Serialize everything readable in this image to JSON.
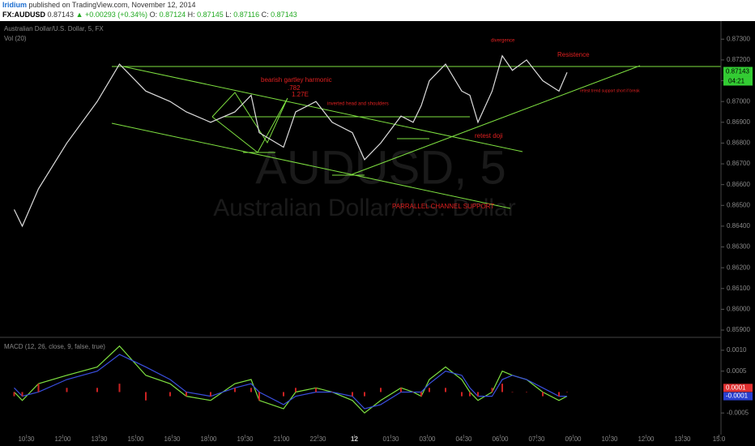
{
  "header": {
    "author": "Iridium",
    "published": "published on TradingView.com, November 12, 2014",
    "symbol": "FX:AUDUSD",
    "last": "0.87143",
    "change": "▲ +0.00293 (+0.34%)",
    "o_label": "O:",
    "o": "0.87124",
    "h_label": "H:",
    "h": "0.87145",
    "l_label": "L:",
    "l": "0.87116",
    "c_label": "C:",
    "c": "0.87143"
  },
  "chart_data": [
    {
      "type": "line",
      "title": "Australian Dollar/U.S. Dollar, 5, FX",
      "subtitle": "Vol (20)",
      "watermark": "AUDUSD, 5",
      "watermark_sub": "Australian Dollar/U.S. Dollar",
      "x": [
        0,
        4,
        12,
        26,
        41,
        52,
        65,
        77,
        85,
        97,
        109,
        117,
        121,
        133,
        139,
        149,
        157,
        167,
        173,
        181,
        191,
        197,
        201,
        205,
        213,
        221,
        225,
        229,
        236,
        241,
        246,
        253,
        261,
        269,
        273
      ],
      "series": [
        {
          "name": "AUDUSD",
          "color": "#dddddd",
          "values": [
            0.8648,
            0.864,
            0.8658,
            0.868,
            0.87,
            0.8718,
            0.8705,
            0.87,
            0.8695,
            0.869,
            0.8695,
            0.8703,
            0.8685,
            0.8678,
            0.8695,
            0.87,
            0.869,
            0.8685,
            0.8672,
            0.868,
            0.8693,
            0.869,
            0.8698,
            0.871,
            0.8718,
            0.8705,
            0.8703,
            0.869,
            0.8705,
            0.8722,
            0.8715,
            0.872,
            0.871,
            0.8705,
            0.8714
          ]
        }
      ],
      "xlim": [
        -7,
        349
      ],
      "xticks": [
        {
          "value": 6,
          "label": "10:30"
        },
        {
          "value": 24,
          "label": "12:00"
        },
        {
          "value": 42,
          "label": "13:30"
        },
        {
          "value": 60,
          "label": "15:00"
        },
        {
          "value": 78,
          "label": "16:30"
        },
        {
          "value": 96,
          "label": "18:00"
        },
        {
          "value": 114,
          "label": "19:30"
        },
        {
          "value": 132,
          "label": "21:00"
        },
        {
          "value": 150,
          "label": "22:30"
        },
        {
          "value": 168,
          "label": "12"
        },
        {
          "value": 186,
          "label": "01:30"
        },
        {
          "value": 204,
          "label": "03:00"
        },
        {
          "value": 222,
          "label": "04:30"
        },
        {
          "value": 240,
          "label": "06:00"
        },
        {
          "value": 258,
          "label": "07:30"
        },
        {
          "value": 276,
          "label": "09:00"
        },
        {
          "value": 294,
          "label": "10:30"
        },
        {
          "value": 312,
          "label": "12:00"
        },
        {
          "value": 330,
          "label": "13:30"
        },
        {
          "value": 348,
          "label": "15:0"
        }
      ],
      "ylim": [
        0.85865,
        0.87387
      ],
      "yticks": [
        {
          "value": 0.873,
          "label": "0.87300"
        },
        {
          "value": 0.872,
          "label": "0.87200"
        },
        {
          "value": 0.871,
          "label": "0.87100"
        },
        {
          "value": 0.87,
          "label": "0.87000"
        },
        {
          "value": 0.869,
          "label": "0.86900"
        },
        {
          "value": 0.868,
          "label": "0.86800"
        },
        {
          "value": 0.867,
          "label": "0.86700"
        },
        {
          "value": 0.866,
          "label": "0.86600"
        },
        {
          "value": 0.865,
          "label": "0.86500"
        },
        {
          "value": 0.864,
          "label": "0.86400"
        },
        {
          "value": 0.863,
          "label": "0.86300"
        },
        {
          "value": 0.862,
          "label": "0.86200"
        },
        {
          "value": 0.861,
          "label": "0.86100"
        },
        {
          "value": 0.86,
          "label": "0.86000"
        },
        {
          "value": 0.859,
          "label": "0.85900"
        }
      ],
      "price_tag": {
        "value": 0.87143,
        "label": "0.87143"
      },
      "countdown": "04:21",
      "annotations": [
        "bearish gartley harmonic",
        ".782",
        "1.27E",
        "inverted head and shoulders",
        "retest doji",
        "PARRALLEL CHANNEL SUPPORT",
        "divergence",
        "Resistence",
        "retest trend support short if break"
      ]
    },
    {
      "type": "macd",
      "title": "MACD (12, 26, close, 9, false, true)",
      "series": [
        {
          "name": "MACD",
          "color": "#7ee040",
          "values": [
            0,
            -0.0002,
            0.0002,
            0.0004,
            0.0006,
            0.0011,
            0.0004,
            0.0002,
            -0.0001,
            -0.0002,
            0.0002,
            0.0003,
            -0.0002,
            -0.0004,
            0,
            0.0001,
            0,
            -0.0002,
            -0.0005,
            -0.0002,
            0.0001,
            0,
            -0.0001,
            0.0003,
            0.0006,
            0.0003,
            0,
            -0.0002,
            0,
            0.0005,
            0.0004,
            0.0003,
            0,
            -0.0002,
            -0.0001
          ]
        },
        {
          "name": "Signal",
          "color": "#3a4fe0",
          "values": [
            0.0001,
            -0.0001,
            0,
            0.0003,
            0.0005,
            0.0009,
            0.0006,
            0.0003,
            0,
            -0.0001,
            0.0001,
            0.0002,
            0,
            -0.0003,
            -0.0001,
            0,
            0,
            -0.0001,
            -0.0004,
            -0.0003,
            0,
            0,
            0,
            0.0002,
            0.0005,
            0.0004,
            0.0001,
            -0.0001,
            -0.0001,
            0.0003,
            0.0004,
            0.0003,
            0.0001,
            -0.0001,
            -0.0001
          ]
        },
        {
          "name": "Histogram",
          "color": "#cc2222",
          "values": [
            -0.0001,
            -0.0001,
            0.0002,
            0.0001,
            0.0001,
            0.0002,
            -0.0002,
            -0.0001,
            -0.0001,
            -0.0001,
            0.0001,
            0.0001,
            -0.0002,
            -0.0001,
            0.0001,
            0.0001,
            0,
            -0.0001,
            -0.0001,
            0.0001,
            0.0001,
            0,
            -0.0001,
            0.0001,
            0.0001,
            -0.0001,
            -0.0001,
            -0.0001,
            0.0001,
            0.0002,
            0,
            0,
            -0.0001,
            -0.0001,
            0
          ]
        }
      ],
      "ylim": [
        -0.00098,
        0.00127
      ],
      "yticks": [
        {
          "value": 0.001,
          "label": "0.0010"
        },
        {
          "value": 0.0005,
          "label": "0.0005"
        },
        {
          "value": -0.0005,
          "label": "-0.0005"
        }
      ],
      "tags": [
        {
          "value": 0.0001,
          "label": "0.0001"
        },
        {
          "value": -0.0001,
          "label": "-0.0001"
        }
      ]
    }
  ]
}
